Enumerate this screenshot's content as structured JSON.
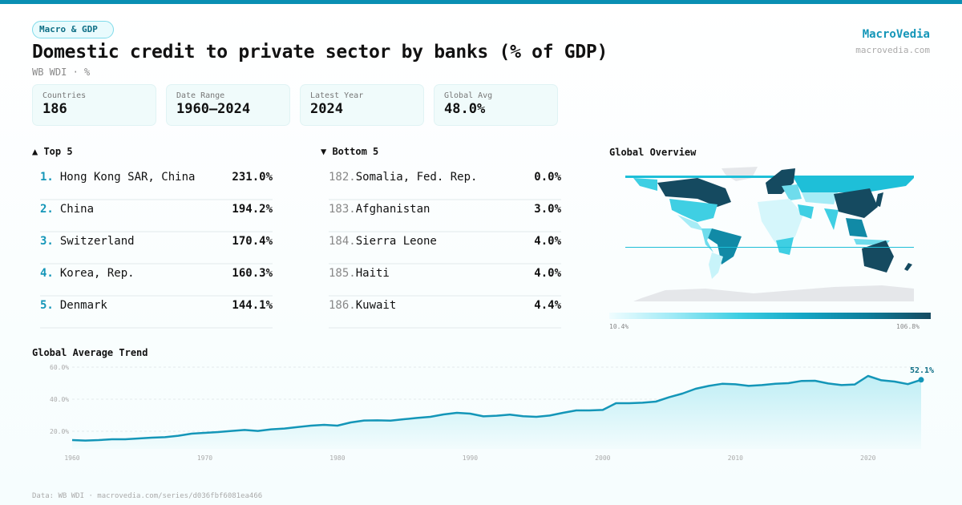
{
  "badge": "Macro & GDP",
  "title": "Domestic credit to private sector by banks (% of GDP)",
  "subtitle": "WB WDI · %",
  "brand": {
    "name": "MacroVedia",
    "url": "macrovedia.com"
  },
  "stats": [
    {
      "label": "Countries",
      "value": "186"
    },
    {
      "label": "Date Range",
      "value": "1960–2024"
    },
    {
      "label": "Latest Year",
      "value": "2024"
    },
    {
      "label": "Global Avg",
      "value": "48.0%"
    }
  ],
  "top": {
    "title": "▲ Top 5",
    "items": [
      {
        "rank": "1.",
        "name": "Hong Kong SAR, China",
        "value": "231.0%"
      },
      {
        "rank": "2.",
        "name": "China",
        "value": "194.2%"
      },
      {
        "rank": "3.",
        "name": "Switzerland",
        "value": "170.4%"
      },
      {
        "rank": "4.",
        "name": "Korea, Rep.",
        "value": "160.3%"
      },
      {
        "rank": "5.",
        "name": "Denmark",
        "value": "144.1%"
      }
    ]
  },
  "bottom": {
    "title": "▼ Bottom 5",
    "items": [
      {
        "rank": "182.",
        "name": "Somalia, Fed. Rep.",
        "value": "0.0%"
      },
      {
        "rank": "183.",
        "name": "Afghanistan",
        "value": "3.0%"
      },
      {
        "rank": "184.",
        "name": "Sierra Leone",
        "value": "4.0%"
      },
      {
        "rank": "185.",
        "name": "Haiti",
        "value": "4.0%"
      },
      {
        "rank": "186.",
        "name": "Kuwait",
        "value": "4.4%"
      }
    ]
  },
  "map": {
    "title": "Global Overview",
    "legend_min": "10.4%",
    "legend_max": "106.8%",
    "colors": {
      "low": "#f0fdff",
      "high": "#154a60",
      "nodata": "#e5e7ea"
    }
  },
  "footer": "Data: WB WDI · macrovedia.com/series/d036fbf6081ea466",
  "chart_data": {
    "type": "area",
    "title": "Global Average Trend",
    "ylim": [
      9,
      62
    ],
    "yticks": [
      20,
      40,
      60
    ],
    "ytick_labels": [
      "20.0%",
      "40.0%",
      "60.0%"
    ],
    "xticks": [
      1960,
      1970,
      1980,
      1990,
      2000,
      2010,
      2020
    ],
    "grid": true,
    "color": "#1496b8",
    "last_label": "52.1%",
    "x": [
      1960,
      1961,
      1962,
      1963,
      1964,
      1965,
      1966,
      1967,
      1968,
      1969,
      1970,
      1971,
      1972,
      1973,
      1974,
      1975,
      1976,
      1977,
      1978,
      1979,
      1980,
      1981,
      1982,
      1983,
      1984,
      1985,
      1986,
      1987,
      1988,
      1989,
      1990,
      1991,
      1992,
      1993,
      1994,
      1995,
      1996,
      1997,
      1998,
      1999,
      2000,
      2001,
      2002,
      2003,
      2004,
      2005,
      2006,
      2007,
      2008,
      2009,
      2010,
      2011,
      2012,
      2013,
      2014,
      2015,
      2016,
      2017,
      2018,
      2019,
      2020,
      2021,
      2022,
      2023,
      2024
    ],
    "values": [
      14.5,
      14.2,
      14.5,
      15,
      15,
      15.5,
      16,
      16.3,
      17.2,
      18.5,
      19,
      19.5,
      20.2,
      20.8,
      20.2,
      21.2,
      21.7,
      22.6,
      23.5,
      24,
      23.5,
      25.5,
      26.7,
      26.8,
      26.6,
      27.5,
      28.3,
      29,
      30.5,
      31.5,
      31,
      29.3,
      29.7,
      30.4,
      29.4,
      29,
      29.8,
      31.5,
      33,
      33,
      33.3,
      37.5,
      37.5,
      37.8,
      38.5,
      41.2,
      43.5,
      46.5,
      48.3,
      49.6,
      49.3,
      48.3,
      48.8,
      49.6,
      50,
      51.4,
      51.5,
      49.8,
      48.8,
      49.2,
      54.5,
      51.8,
      51,
      49.4,
      52.1
    ]
  }
}
